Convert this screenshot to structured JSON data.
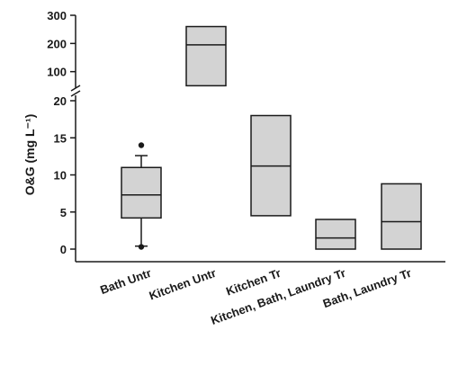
{
  "chart_data": {
    "type": "box",
    "ylabel": "O&G (mg L⁻¹)",
    "y_axis_break": {
      "lower_range": [
        0,
        20
      ],
      "upper_range": [
        0,
        300
      ],
      "lower_ticks": [
        "0",
        "5",
        "10",
        "15",
        "20"
      ],
      "upper_ticks": [
        "100",
        "200",
        "300"
      ]
    },
    "categories": [
      "Bath Untr",
      "Kitchen Untr",
      "Kitchen Tr",
      "Kitchen, Bath, Laundry Tr",
      "Bath, Laundry Tr"
    ],
    "boxes": [
      {
        "category": "Bath Untr",
        "axis": "lower",
        "q1": 4.2,
        "median": 7.3,
        "q3": 11.0,
        "whisker_low": 0.4,
        "whisker_high": 12.6,
        "outliers": [
          14.0,
          0.3
        ]
      },
      {
        "category": "Kitchen Untr",
        "axis": "upper",
        "q1": 50,
        "median": 195,
        "q3": 260
      },
      {
        "category": "Kitchen Tr",
        "axis": "lower",
        "q1": 4.5,
        "median": 11.2,
        "q3": 18.0
      },
      {
        "category": "Kitchen, Bath, Laundry Tr",
        "axis": "lower",
        "q1": 0.0,
        "median": 1.5,
        "q3": 4.0
      },
      {
        "category": "Bath, Laundry Tr",
        "axis": "lower",
        "q1": 0.0,
        "median": 3.7,
        "q3": 8.8
      }
    ],
    "colors": {
      "box_fill": "#d3d3d3",
      "stroke": "#1a1a1a"
    },
    "grid": false,
    "legend": "none"
  }
}
